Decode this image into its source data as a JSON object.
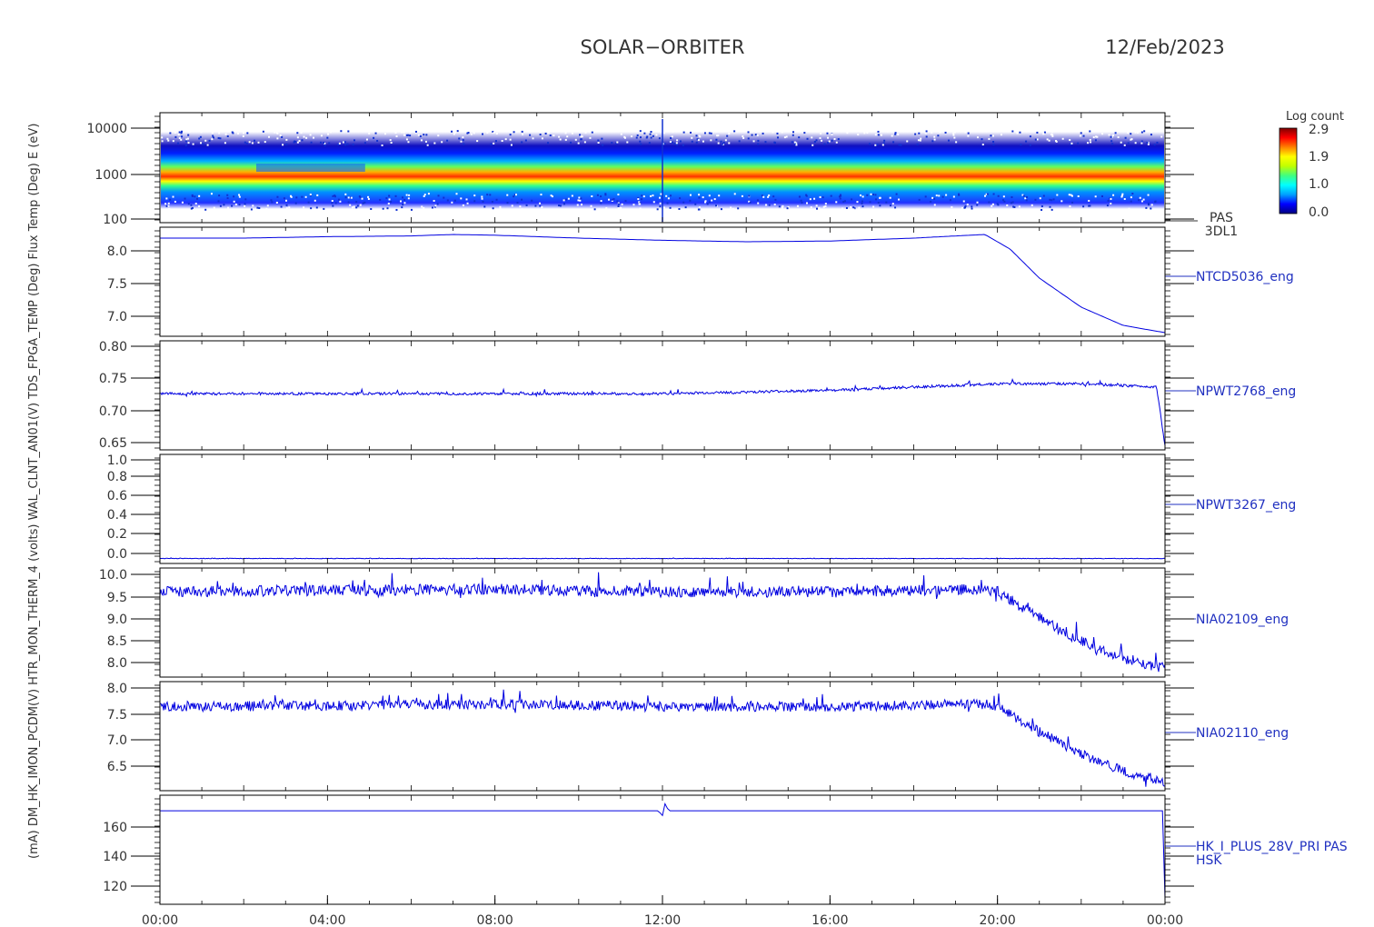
{
  "header": {
    "title": "SOLAR−ORBITER",
    "date": "12/Feb/2023"
  },
  "left_axis_text": "(mA) DM_HK_IMON_PCDM(V) HTR_MON_THERM_4 (volts) WAL_CLNT_AN01(V) TDS_FPGA_TEMP (Deg) Flux Temp (Deg) E (eV)",
  "colorbar": {
    "label": "Log count",
    "ticks": [
      "2.9",
      "1.9",
      "1.0",
      "0.0"
    ],
    "colors": [
      "#000080",
      "#0000ff",
      "#00a0ff",
      "#00ffff",
      "#40ff80",
      "#c0ff00",
      "#ffff00",
      "#ff8000",
      "#ff0000",
      "#800000"
    ]
  },
  "x_axis": {
    "ticks": [
      "00:00",
      "04:00",
      "08:00",
      "12:00",
      "16:00",
      "20:00",
      "00:00"
    ]
  },
  "chart_data": [
    {
      "type": "heatmap",
      "name_label": "PAS 3DL1",
      "y_scale": "log",
      "ylim": [
        100,
        12000
      ],
      "y_ticks": [
        "10000",
        "1000",
        "100"
      ],
      "x_range_hours": [
        0,
        24
      ],
      "z_range": [
        0.0,
        2.9
      ],
      "peak_energy_eV": 780,
      "upper_population_eV": 1300
    },
    {
      "type": "line",
      "name_label": "NTCD5036_eng",
      "ylim": [
        6.8,
        8.3
      ],
      "y_ticks": [
        "8.0",
        "7.5",
        "7.0"
      ],
      "x_hours": [
        0,
        2,
        4,
        6,
        7,
        8,
        10,
        12,
        14,
        16,
        18,
        19,
        19.7,
        20.3,
        21,
        22,
        23,
        24
      ],
      "y": [
        8.15,
        8.15,
        8.17,
        8.18,
        8.2,
        8.19,
        8.15,
        8.12,
        8.1,
        8.11,
        8.15,
        8.18,
        8.2,
        8.0,
        7.6,
        7.2,
        6.95,
        6.85
      ]
    },
    {
      "type": "line",
      "name_label": "NPWT2768_eng",
      "ylim": [
        0.645,
        0.81
      ],
      "y_ticks": [
        "0.80",
        "0.75",
        "0.70",
        "0.65"
      ],
      "x_hours": [
        0,
        4,
        8,
        12,
        16,
        18,
        20,
        22,
        23.8,
        24
      ],
      "y": [
        0.73,
        0.73,
        0.73,
        0.73,
        0.735,
        0.74,
        0.745,
        0.745,
        0.74,
        0.65
      ]
    },
    {
      "type": "line",
      "name_label": "NPWT3267_eng",
      "ylim": [
        -0.05,
        1.05
      ],
      "y_ticks": [
        "1.0",
        "0.8",
        "0.6",
        "0.4",
        "0.2",
        "0.0"
      ],
      "x_hours": [
        0,
        24
      ],
      "y": [
        0.0,
        0.0
      ]
    },
    {
      "type": "line",
      "name_label": "NIA02109_eng",
      "ylim": [
        7.8,
        10.1
      ],
      "y_ticks": [
        "10.0",
        "9.5",
        "9.0",
        "8.5",
        "8.0"
      ],
      "x_hours": [
        0,
        4,
        8,
        12,
        16,
        19.5,
        20,
        21,
        22,
        23,
        24
      ],
      "y": [
        9.6,
        9.63,
        9.65,
        9.6,
        9.6,
        9.65,
        9.6,
        9.05,
        8.55,
        8.2,
        7.98
      ]
    },
    {
      "type": "line",
      "name_label": "NIA02110_eng",
      "ylim": [
        6.1,
        8.05
      ],
      "y_ticks": [
        "8.0",
        "7.5",
        "7.0",
        "6.5"
      ],
      "x_hours": [
        0,
        4,
        8,
        12,
        16,
        19.5,
        20,
        21,
        22,
        23,
        24
      ],
      "y": [
        7.6,
        7.62,
        7.65,
        7.6,
        7.6,
        7.65,
        7.6,
        7.15,
        6.75,
        6.45,
        6.25
      ]
    },
    {
      "type": "line",
      "name_label": "HK_I_PLUS_28V_PRI PAS HSK",
      "ylim": [
        108,
        178
      ],
      "y_ticks": [
        "160",
        "140",
        "120"
      ],
      "x_hours": [
        0,
        11.9,
        12.0,
        12.05,
        12.15,
        23.95,
        24
      ],
      "y": [
        168,
        168,
        165,
        173,
        168,
        168,
        112
      ]
    }
  ]
}
